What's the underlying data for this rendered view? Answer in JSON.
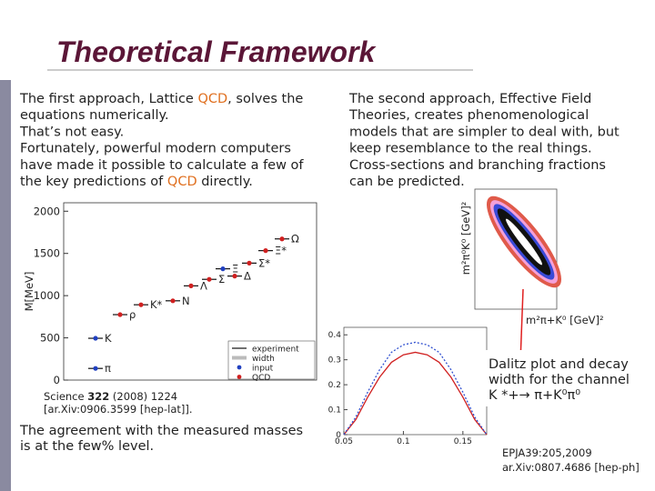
{
  "title": "Theoretical Framework",
  "left_column": {
    "lines": [
      [
        "The first approach, Lattice ",
        {
          "text": "QCD",
          "color": "#e07020"
        },
        ", solves the"
      ],
      [
        "equations numerically."
      ],
      [
        "That’s not easy."
      ],
      [
        "Fortunately, powerful modern computers"
      ],
      [
        "have made it possible to calculate a few of"
      ],
      [
        "the key predictions of ",
        {
          "text": "QCD",
          "color": "#e07020"
        },
        " directly."
      ]
    ]
  },
  "right_column": {
    "lines": [
      [
        "The second approach, Effective Field"
      ],
      [
        "Theories, creates phenomenological"
      ],
      [
        "models that are simpler to deal with, but"
      ],
      [
        "keep resemblance to the real things."
      ],
      [
        "Cross-sections and branching fractions"
      ],
      [
        "can be predicted."
      ]
    ]
  },
  "mass_plot": {
    "ylabel": "M[MeV]",
    "ylim": [
      0,
      2100
    ],
    "yticks": [
      0,
      500,
      1000,
      1500,
      2000
    ],
    "particles": [
      {
        "label": "π",
        "mass": 138,
        "input": true
      },
      {
        "label": "K",
        "mass": 495,
        "input": true
      },
      {
        "label": "ρ",
        "mass": 775,
        "input": false
      },
      {
        "label": "K*",
        "mass": 892,
        "input": false
      },
      {
        "label": "N",
        "mass": 939,
        "input": false
      },
      {
        "label": "Λ",
        "mass": 1116,
        "input": false
      },
      {
        "label": "Σ",
        "mass": 1193,
        "input": false
      },
      {
        "label": "Ξ",
        "mass": 1318,
        "input": true
      },
      {
        "label": "Δ",
        "mass": 1232,
        "input": false
      },
      {
        "label": "Σ*",
        "mass": 1385,
        "input": false
      },
      {
        "label": "Ξ*",
        "mass": 1533,
        "input": false
      },
      {
        "label": "Ω",
        "mass": 1672,
        "input": false
      }
    ],
    "legend": [
      "experiment",
      "width",
      "input",
      "QCD"
    ],
    "citation": [
      [
        "Science ",
        {
          "text": "322",
          "bold": true
        },
        " (2008) 1224"
      ],
      [
        "[ar.Xiv:0906.3599 [hep-lat]]."
      ]
    ]
  },
  "conclusion": [
    "The agreement with the measured masses",
    "is at the few% level."
  ],
  "dalitz_plot": {
    "ylabel": "m²π⁰K⁰ [GeV]²",
    "xlabel": "m²π+K⁰ [GeV]²"
  },
  "width_plot": {
    "xlim": [
      0.05,
      0.17
    ],
    "ylim": [
      0,
      0.43
    ],
    "xticks": [
      0.05,
      0.1,
      0.15
    ],
    "yticks": [
      0,
      0.1,
      0.2,
      0.3,
      0.4
    ],
    "x": [
      0.05,
      0.06,
      0.07,
      0.08,
      0.09,
      0.1,
      0.11,
      0.12,
      0.13,
      0.14,
      0.15,
      0.16,
      0.17
    ],
    "series": [
      {
        "color": "#d02020",
        "dash": false,
        "values": [
          0,
          0.06,
          0.15,
          0.23,
          0.29,
          0.32,
          0.33,
          0.32,
          0.29,
          0.23,
          0.15,
          0.06,
          0
        ]
      },
      {
        "color": "#3050d0",
        "dash": true,
        "values": [
          0,
          0.07,
          0.17,
          0.26,
          0.33,
          0.36,
          0.37,
          0.36,
          0.33,
          0.26,
          0.17,
          0.07,
          0
        ]
      }
    ]
  },
  "caption": [
    "Dalitz plot and decay",
    "width for the channel",
    "K *+→ π+K⁰π⁰"
  ],
  "reference": [
    "EPJA39:205,2009",
    "ar.Xiv:0807.4686 [hep-ph]"
  ]
}
